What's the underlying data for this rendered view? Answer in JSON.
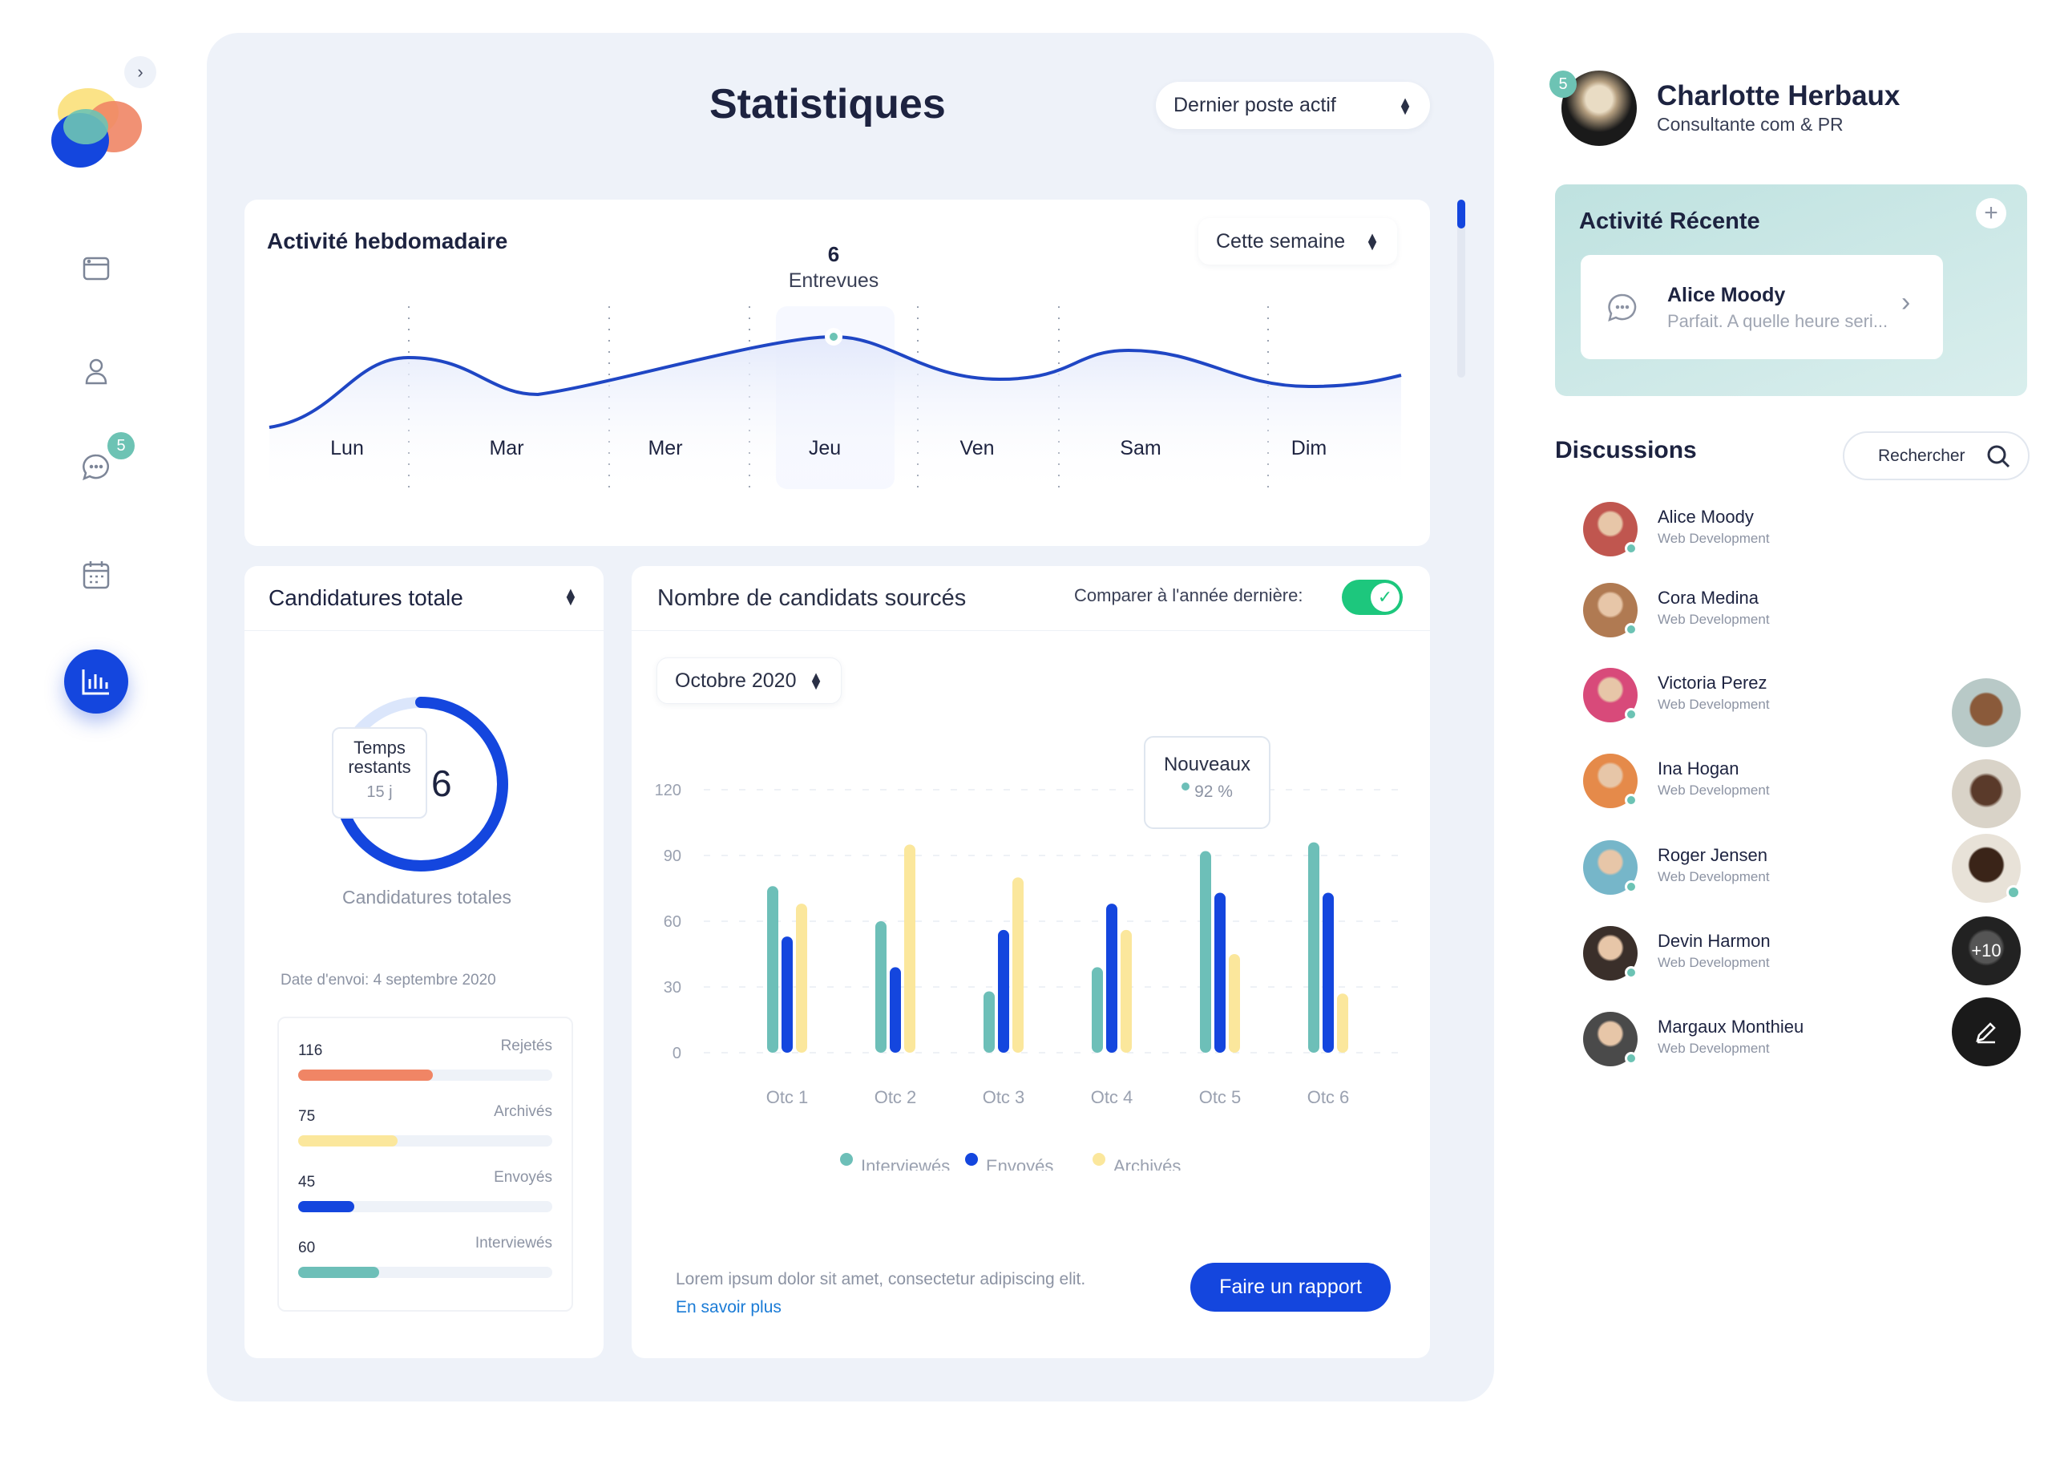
{
  "sidebar": {
    "collapse_icon": "chevron-right-icon",
    "items": [
      {
        "name": "dashboard",
        "icon": "window-icon"
      },
      {
        "name": "profile",
        "icon": "user-icon"
      },
      {
        "name": "messages",
        "icon": "chat-icon",
        "badge": "5"
      },
      {
        "name": "calendar",
        "icon": "calendar-icon"
      },
      {
        "name": "statistics",
        "icon": "bar-chart-icon",
        "active": true
      }
    ]
  },
  "header": {
    "title": "Statistiques",
    "select": "Dernier poste actif"
  },
  "weekly": {
    "title": "Activité hebdomadaire",
    "select": "Cette semaine",
    "highlight_value": "6",
    "highlight_label": "Entrevues",
    "days": [
      "Lun",
      "Mar",
      "Mer",
      "Jeu",
      "Ven",
      "Sam",
      "Dim"
    ],
    "selected_day": "Jeu"
  },
  "applications": {
    "title": "Candidatures totale",
    "tooltip_title": "Temps restants",
    "tooltip_value": "15 j",
    "donut_value": "6",
    "donut_progress": 0.75,
    "caption": "Candidatures totales",
    "date": "Date d'envoi: 4 septembre 2020",
    "bars": [
      {
        "value": "116",
        "label": "Rejetés",
        "fraction": 0.53,
        "color": "#f08565"
      },
      {
        "value": "75",
        "label": "Archivés",
        "fraction": 0.39,
        "color": "#fbe79c"
      },
      {
        "value": "45",
        "label": "Envoyés",
        "fraction": 0.22,
        "color": "#1446de"
      },
      {
        "value": "60",
        "label": "Interviewés",
        "fraction": 0.32,
        "color": "#6dbfb8"
      }
    ]
  },
  "sourced": {
    "title": "Nombre de candidats sourcés",
    "compare_label": "Comparer à l'année dernière:",
    "compare_on": true,
    "month_select": "Octobre 2020",
    "tooltip_title": "Nouveaux",
    "tooltip_value": "92 %",
    "footer_text": "Lorem ipsum dolor sit amet, consectetur adipiscing elit.",
    "footer_link": "En savoir plus",
    "report_button": "Faire un rapport"
  },
  "chart_data": {
    "type": "bar",
    "title": "Nombre de candidats sourcés",
    "categories": [
      "Otc 1",
      "Otc 2",
      "Otc 3",
      "Otc 4",
      "Otc 5",
      "Otc 6"
    ],
    "yticks": [
      "0",
      "30",
      "60",
      "90",
      "120"
    ],
    "ylim": [
      0,
      120
    ],
    "legend_position": "bottom",
    "series": [
      {
        "name": "Interviewés",
        "color": "#6dbfb8",
        "values": [
          76,
          60,
          28,
          39,
          92,
          96
        ]
      },
      {
        "name": "Envoyés",
        "color": "#1446de",
        "values": [
          53,
          39,
          56,
          68,
          73,
          73
        ]
      },
      {
        "name": "Archivés",
        "color": "#fbe79c",
        "values": [
          68,
          95,
          80,
          56,
          45,
          27
        ]
      }
    ]
  },
  "profile": {
    "name": "Charlotte Herbaux",
    "role": "Consultante com & PR",
    "badge": "5"
  },
  "recent": {
    "title": "Activité Récente",
    "item_name": "Alice Moody",
    "item_msg": "Parfait. A quelle heure seri..."
  },
  "discussions": {
    "title": "Discussions",
    "search_label": "Rechercher",
    "extra_count": "+10",
    "items": [
      {
        "name": "Alice Moody",
        "role": "Web Development",
        "color": "#c0564f"
      },
      {
        "name": "Cora Medina",
        "role": "Web Development",
        "color": "#b07a52"
      },
      {
        "name": "Victoria Perez",
        "role": "Web Development",
        "color": "#d84a7a"
      },
      {
        "name": "Ina Hogan",
        "role": "Web Development",
        "color": "#e58a4a"
      },
      {
        "name": "Roger Jensen",
        "role": "Web Development",
        "color": "#76b6c9"
      },
      {
        "name": "Devin Harmon",
        "role": "Web Development",
        "color": "#3a2f2a"
      },
      {
        "name": "Margaux Monthieu",
        "role": "Web Development",
        "color": "#4a4a4a"
      }
    ]
  }
}
